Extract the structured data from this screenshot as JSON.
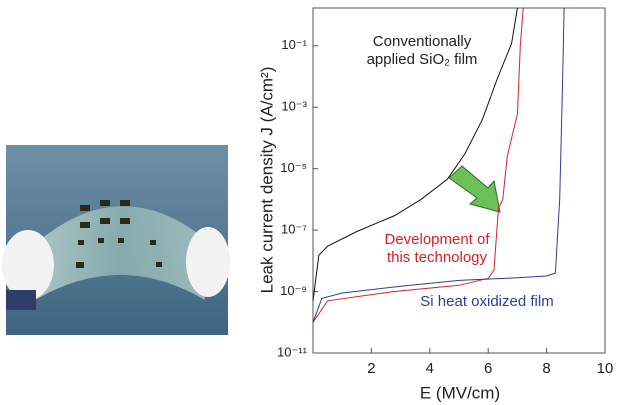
{
  "chart_data": {
    "type": "line",
    "y_label": "Leak current density J (A/cm²)",
    "x_label": "E (MV/cm)",
    "xlim": [
      0,
      10
    ],
    "xticks": [
      2,
      4,
      6,
      8,
      10
    ],
    "ylim": [
      1e-11,
      1.7
    ],
    "log_y": true,
    "yticks": [
      {
        "value": 1e-11,
        "label": "10⁻¹¹"
      },
      {
        "value": 1e-09,
        "label": "10⁻⁹"
      },
      {
        "value": 1e-07,
        "label": "10⁻⁷"
      },
      {
        "value": 1e-05,
        "label": "10⁻⁵"
      },
      {
        "value": 0.001,
        "label": "10⁻³"
      },
      {
        "value": 0.1,
        "label": "10⁻¹"
      }
    ],
    "annotations": [
      {
        "lines": [
          "Conventionally",
          "applied SiO₂ film"
        ],
        "color": "#222222"
      },
      {
        "lines": [
          "Development of",
          "this technology"
        ],
        "color": "#d2232a"
      },
      {
        "lines": [
          "Si heat oxidized film"
        ],
        "color": "#2b3f97"
      }
    ],
    "series": [
      {
        "color": "#111111",
        "x": [
          0,
          0.2,
          0.5,
          1.5,
          2.8,
          3.7,
          4.6,
          5.2,
          5.8,
          6.3,
          6.8,
          7.0
        ],
        "values": [
          5e-10,
          1.5e-08,
          3e-08,
          9e-08,
          3e-07,
          1e-06,
          4.5e-06,
          3e-05,
          0.0004,
          0.008,
          0.12,
          1.7
        ]
      },
      {
        "color": "#d2232a",
        "x": [
          0,
          0.5,
          2.75,
          5,
          6,
          6.2,
          6.35,
          6.5,
          6.65,
          7.0,
          7.1,
          7.2
        ],
        "values": [
          1e-10,
          5e-10,
          1e-09,
          1.6e-09,
          2.7e-09,
          5e-09,
          5e-07,
          1e-06,
          2.5e-05,
          0.0006,
          0.1,
          1.7
        ]
      },
      {
        "color": "#2b3f97",
        "x": [
          0,
          0.3,
          1,
          3,
          5,
          7,
          8,
          8.3,
          8.45,
          8.55,
          8.6
        ],
        "values": [
          1e-10,
          6e-10,
          9e-10,
          1.5e-09,
          2.3e-09,
          2.8e-09,
          3.2e-09,
          4e-09,
          1e-06,
          0.01,
          1.7
        ]
      }
    ]
  }
}
